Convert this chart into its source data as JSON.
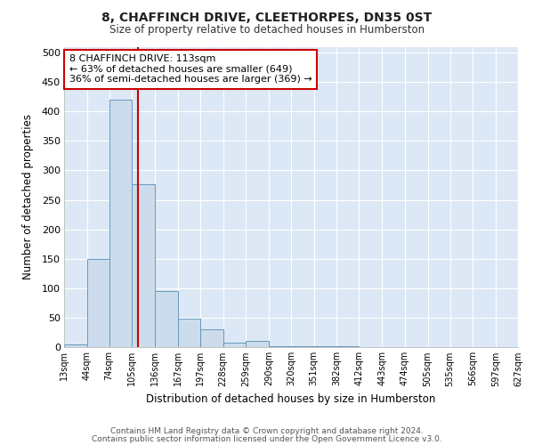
{
  "title": "8, CHAFFINCH DRIVE, CLEETHORPES, DN35 0ST",
  "subtitle": "Size of property relative to detached houses in Humberston",
  "xlabel": "Distribution of detached houses by size in Humberston",
  "ylabel": "Number of detached properties",
  "footer_line1": "Contains HM Land Registry data © Crown copyright and database right 2024.",
  "footer_line2": "Contains public sector information licensed under the Open Government Licence v3.0.",
  "bin_edges": [
    13,
    44,
    74,
    105,
    136,
    167,
    197,
    228,
    259,
    290,
    320,
    351,
    382,
    412,
    443,
    474,
    505,
    535,
    566,
    597,
    627
  ],
  "bar_heights": [
    5,
    150,
    420,
    277,
    95,
    48,
    30,
    8,
    10,
    1,
    1,
    1,
    2,
    0,
    0,
    0,
    0,
    0,
    0,
    0
  ],
  "bar_color": "#ccdcec",
  "bar_edge_color": "#6699bb",
  "property_size": 113,
  "red_line_color": "#cc0000",
  "annotation_text": "8 CHAFFINCH DRIVE: 113sqm\n← 63% of detached houses are smaller (649)\n36% of semi-detached houses are larger (369) →",
  "annotation_box_color": "#ffffff",
  "annotation_box_edge": "#cc0000",
  "ylim": [
    0,
    510
  ],
  "fig_bg_color": "#ffffff",
  "plot_bg_color": "#dce8f5",
  "grid_color": "#ffffff",
  "tick_labels": [
    "13sqm",
    "44sqm",
    "74sqm",
    "105sqm",
    "136sqm",
    "167sqm",
    "197sqm",
    "228sqm",
    "259sqm",
    "290sqm",
    "320sqm",
    "351sqm",
    "382sqm",
    "412sqm",
    "443sqm",
    "474sqm",
    "505sqm",
    "535sqm",
    "566sqm",
    "597sqm",
    "627sqm"
  ]
}
